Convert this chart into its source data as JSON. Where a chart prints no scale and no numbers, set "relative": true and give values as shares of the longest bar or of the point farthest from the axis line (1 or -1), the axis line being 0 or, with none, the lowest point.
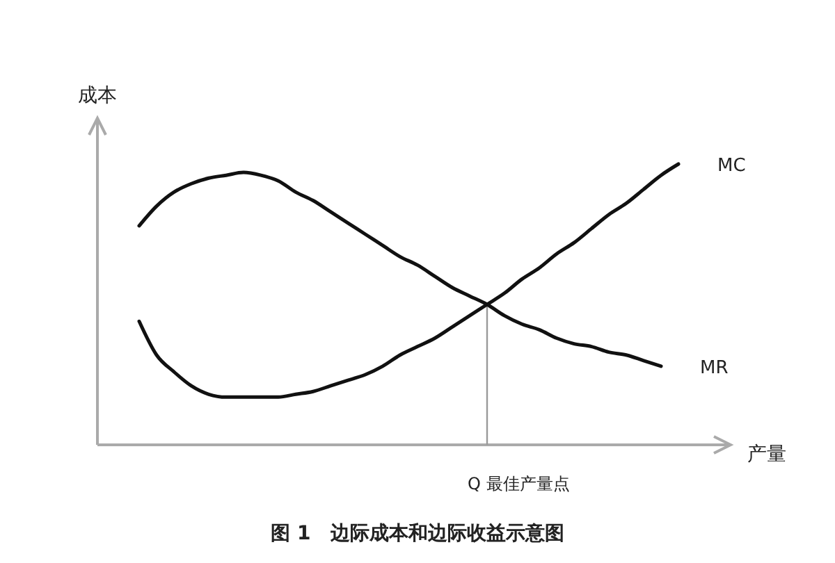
{
  "chart_data": {
    "type": "line",
    "title": "图 1　边际成本和边际收益示意图",
    "ylabel": "成本",
    "xlabel": "产量",
    "relative": true,
    "annotations": [
      "Q 最佳产量点"
    ],
    "categories": [
      null,
      null,
      null,
      null,
      null,
      null,
      null,
      null,
      null,
      null,
      null,
      null,
      null,
      null,
      null,
      null,
      null,
      null,
      null,
      null,
      null,
      null,
      null,
      null,
      null,
      null,
      null,
      null,
      null,
      null,
      null,
      null
    ],
    "series": [
      {
        "name": "MC",
        "color": "#111111",
        "values": [
          0.44,
          0.32,
          0.26,
          0.21,
          0.18,
          0.17,
          0.17,
          0.17,
          0.17,
          0.18,
          0.19,
          0.21,
          0.23,
          0.25,
          0.28,
          0.32,
          0.35,
          0.38,
          0.42,
          0.46,
          0.5,
          0.54,
          0.59,
          0.63,
          0.68,
          0.72,
          0.77,
          0.82,
          0.86,
          0.91,
          0.96,
          1.0
        ]
      },
      {
        "name": "MR",
        "color": "#111111",
        "values": [
          0.78,
          0.85,
          0.9,
          0.93,
          0.95,
          0.96,
          0.97,
          0.96,
          0.94,
          0.9,
          0.87,
          0.83,
          0.79,
          0.75,
          0.71,
          0.67,
          0.64,
          0.6,
          0.56,
          0.53,
          0.5,
          0.46,
          0.43,
          0.41,
          0.38,
          0.36,
          0.35,
          0.33,
          0.32,
          0.3,
          0.28,
          null
        ]
      }
    ],
    "marker": "none",
    "line_style": "solid"
  }
}
